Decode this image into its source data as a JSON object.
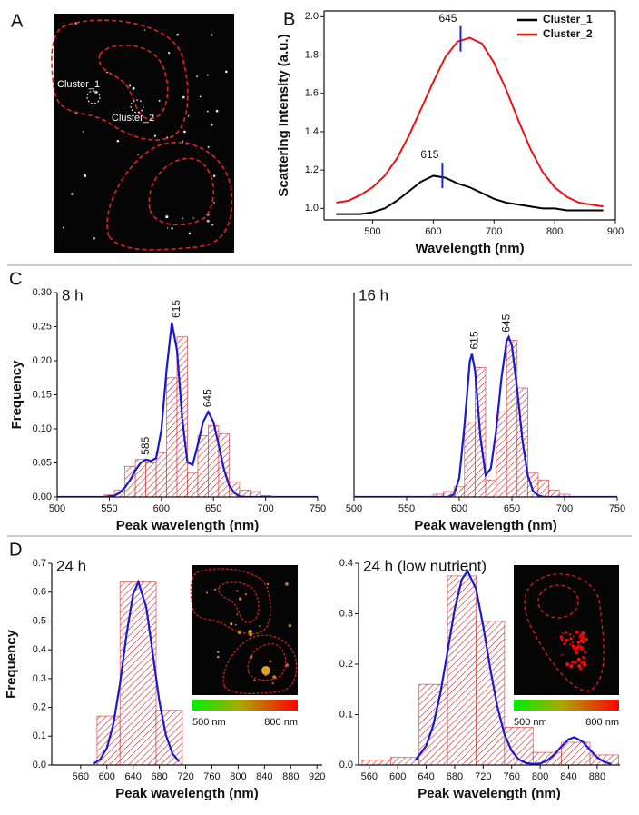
{
  "panel_labels": [
    "A",
    "B",
    "C",
    "D"
  ],
  "panel_a": {
    "labels": [
      "Cluster_1",
      "Cluster_2"
    ]
  },
  "chart_data": [
    {
      "type": "line",
      "frame": "box",
      "legend": "upper right",
      "xlabel": "Wavelength (nm)",
      "ylabel": "Scattering Intensity (a.u.)",
      "x": [
        440,
        460,
        480,
        500,
        520,
        540,
        560,
        580,
        600,
        620,
        640,
        660,
        680,
        700,
        720,
        740,
        760,
        780,
        800,
        820,
        840,
        860,
        880
      ],
      "series": [
        {
          "name": "Cluster_1",
          "color": "#000000",
          "peak": 615,
          "values": [
            0.97,
            0.97,
            0.97,
            0.98,
            1.0,
            1.04,
            1.09,
            1.14,
            1.17,
            1.16,
            1.13,
            1.11,
            1.08,
            1.05,
            1.03,
            1.02,
            1.01,
            1.0,
            1.0,
            0.99,
            0.99,
            0.99,
            0.99
          ]
        },
        {
          "name": "Cluster_2",
          "color": "#ee1111",
          "peak": 645,
          "values": [
            1.03,
            1.04,
            1.07,
            1.11,
            1.17,
            1.26,
            1.38,
            1.52,
            1.66,
            1.79,
            1.87,
            1.89,
            1.86,
            1.76,
            1.62,
            1.46,
            1.31,
            1.19,
            1.11,
            1.06,
            1.03,
            1.02,
            1.01
          ]
        }
      ],
      "peak_color": "#2222cc",
      "xlim": [
        420,
        900
      ],
      "xticks": [
        500,
        600,
        700,
        800,
        900
      ],
      "ylim": [
        0.94,
        2.03
      ],
      "yticks": [
        {
          "value": 1,
          "label": "1.0"
        },
        {
          "value": 1.2,
          "label": "1.2"
        },
        {
          "value": 1.4,
          "label": "1.4"
        },
        {
          "value": 1.6,
          "label": "1.6"
        },
        {
          "value": 1.8,
          "label": "1.8"
        },
        {
          "value": 2,
          "label": "2.0"
        }
      ]
    },
    {
      "type": "histogram",
      "title": "8 h",
      "xlabel": "Peak wavelength (nm)",
      "ylabel": "Frequency",
      "color": "#cc2222",
      "bins": [
        545,
        555,
        565,
        575,
        585,
        595,
        605,
        615,
        625,
        635,
        645,
        655,
        665,
        675,
        685,
        695,
        705
      ],
      "values": [
        0.003,
        0.01,
        0.045,
        0.055,
        0.05,
        0.065,
        0.175,
        0.235,
        0.035,
        0.09,
        0.105,
        0.093,
        0.022,
        0.01,
        0.008,
        0.002
      ],
      "fit": {
        "color": "#1a1acc",
        "x": [
          500,
          540,
          545,
          550,
          555,
          560,
          565,
          570,
          575,
          580,
          585,
          590,
          595,
          600,
          605,
          610,
          615,
          620,
          625,
          630,
          635,
          640,
          645,
          650,
          655,
          660,
          665,
          670,
          675,
          680,
          700,
          750
        ],
        "values": [
          0,
          0,
          0,
          0.001,
          0.002,
          0.006,
          0.014,
          0.025,
          0.039,
          0.05,
          0.055,
          0.053,
          0.057,
          0.098,
          0.187,
          0.256,
          0.215,
          0.115,
          0.051,
          0.047,
          0.077,
          0.11,
          0.125,
          0.11,
          0.076,
          0.041,
          0.017,
          0.006,
          0.001,
          0,
          0,
          0
        ]
      },
      "peaks": [
        585,
        615,
        645
      ],
      "xlim": [
        500,
        750
      ],
      "xticks": [
        500,
        550,
        600,
        650,
        700,
        750
      ],
      "ylim": [
        0,
        0.3
      ],
      "yticks": [
        {
          "value": 0,
          "label": "0.00"
        },
        {
          "value": 0.05,
          "label": "0.05"
        },
        {
          "value": 0.1,
          "label": "0.10"
        },
        {
          "value": 0.15,
          "label": "0.15"
        },
        {
          "value": 0.2,
          "label": "0.20"
        },
        {
          "value": 0.25,
          "label": "0.25"
        },
        {
          "value": 0.3,
          "label": "0.30"
        }
      ]
    },
    {
      "type": "histogram",
      "title": "16 h",
      "xlabel": "Peak wavelength (nm)",
      "color": "#cc2222",
      "bins": [
        575,
        585,
        595,
        605,
        615,
        625,
        635,
        645,
        655,
        665,
        675,
        685,
        695,
        705
      ],
      "values": [
        0.004,
        0.008,
        0.015,
        0.11,
        0.19,
        0.025,
        0.125,
        0.23,
        0.16,
        0.035,
        0.025,
        0.01,
        0.004
      ],
      "fit": {
        "color": "#1a1acc",
        "x": [
          500,
          580,
          590,
          595,
          600,
          605,
          610,
          612,
          615,
          620,
          625,
          630,
          635,
          640,
          645,
          647,
          650,
          655,
          660,
          665,
          670,
          675,
          680,
          700,
          750
        ],
        "values": [
          0,
          0,
          0,
          0.004,
          0.028,
          0.106,
          0.199,
          0.21,
          0.185,
          0.089,
          0.032,
          0.042,
          0.097,
          0.174,
          0.229,
          0.235,
          0.222,
          0.158,
          0.083,
          0.032,
          0.009,
          0.002,
          0,
          0,
          0
        ]
      },
      "peaks": [
        615,
        645
      ],
      "xlim": [
        500,
        750
      ],
      "xticks": [
        500,
        550,
        600,
        650,
        700,
        750
      ],
      "ylim": [
        0,
        0.3
      ]
    },
    {
      "type": "histogram",
      "title": "24 h",
      "xlabel": "Peak wavelength (nm)",
      "ylabel": "Frequency",
      "color": "#cc2222",
      "bins": [
        585,
        620,
        675,
        715
      ],
      "values": [
        0.17,
        0.635,
        0.19
      ],
      "fit": {
        "color": "#1a1acc",
        "x": [
          580,
          590,
          600,
          610,
          620,
          630,
          640,
          648,
          660,
          670,
          680,
          690,
          700,
          710
        ],
        "values": [
          0.005,
          0.02,
          0.059,
          0.143,
          0.283,
          0.454,
          0.594,
          0.635,
          0.547,
          0.385,
          0.22,
          0.103,
          0.039,
          0.012
        ]
      },
      "inset": {
        "colorbar_labels": [
          "500 nm",
          "800 nm"
        ]
      },
      "xlim": [
        516,
        928
      ],
      "xticks": [
        560,
        600,
        640,
        680,
        720,
        760,
        800,
        840,
        880,
        920
      ],
      "ylim": [
        0,
        0.7
      ],
      "yticks": [
        {
          "value": 0,
          "label": "0.0"
        },
        {
          "value": 0.1,
          "label": "0.1"
        },
        {
          "value": 0.2,
          "label": "0.2"
        },
        {
          "value": 0.3,
          "label": "0.3"
        },
        {
          "value": 0.4,
          "label": "0.4"
        },
        {
          "value": 0.5,
          "label": "0.5"
        },
        {
          "value": 0.6,
          "label": "0.6"
        },
        {
          "value": 0.7,
          "label": "0.7"
        }
      ]
    },
    {
      "type": "histogram",
      "title": "24 h (low nutrient)",
      "xlabel": "Peak wavelength (nm)",
      "color": "#cc2222",
      "bins": [
        550,
        590,
        630,
        670,
        710,
        750,
        790,
        830,
        870,
        910
      ],
      "values": [
        0.01,
        0.015,
        0.16,
        0.375,
        0.285,
        0.075,
        0.025,
        0.045,
        0.02
      ],
      "fit": {
        "color": "#1a1acc",
        "x": [
          625,
          640,
          650,
          660,
          670,
          680,
          690,
          698,
          710,
          720,
          730,
          740,
          750,
          760,
          770,
          780,
          790,
          800,
          810,
          820,
          830,
          840,
          848,
          860,
          870,
          880,
          890,
          900
        ],
        "values": [
          0.01,
          0.038,
          0.079,
          0.143,
          0.225,
          0.309,
          0.368,
          0.385,
          0.349,
          0.276,
          0.191,
          0.115,
          0.06,
          0.028,
          0.011,
          0.004,
          0.002,
          0.003,
          0.009,
          0.021,
          0.037,
          0.051,
          0.055,
          0.046,
          0.03,
          0.015,
          0.006,
          0.002
        ]
      },
      "inset": {
        "colorbar_labels": [
          "500 nm",
          "800 nm"
        ]
      },
      "xlim": [
        545,
        912
      ],
      "xticks": [
        560,
        600,
        640,
        680,
        720,
        760,
        800,
        840,
        880
      ],
      "ylim": [
        0,
        0.4
      ],
      "yticks": [
        {
          "value": 0,
          "label": "0.0"
        },
        {
          "value": 0.1,
          "label": "0.1"
        },
        {
          "value": 0.2,
          "label": "0.2"
        },
        {
          "value": 0.3,
          "label": "0.3"
        },
        {
          "value": 0.4,
          "label": "0.4"
        }
      ]
    }
  ]
}
